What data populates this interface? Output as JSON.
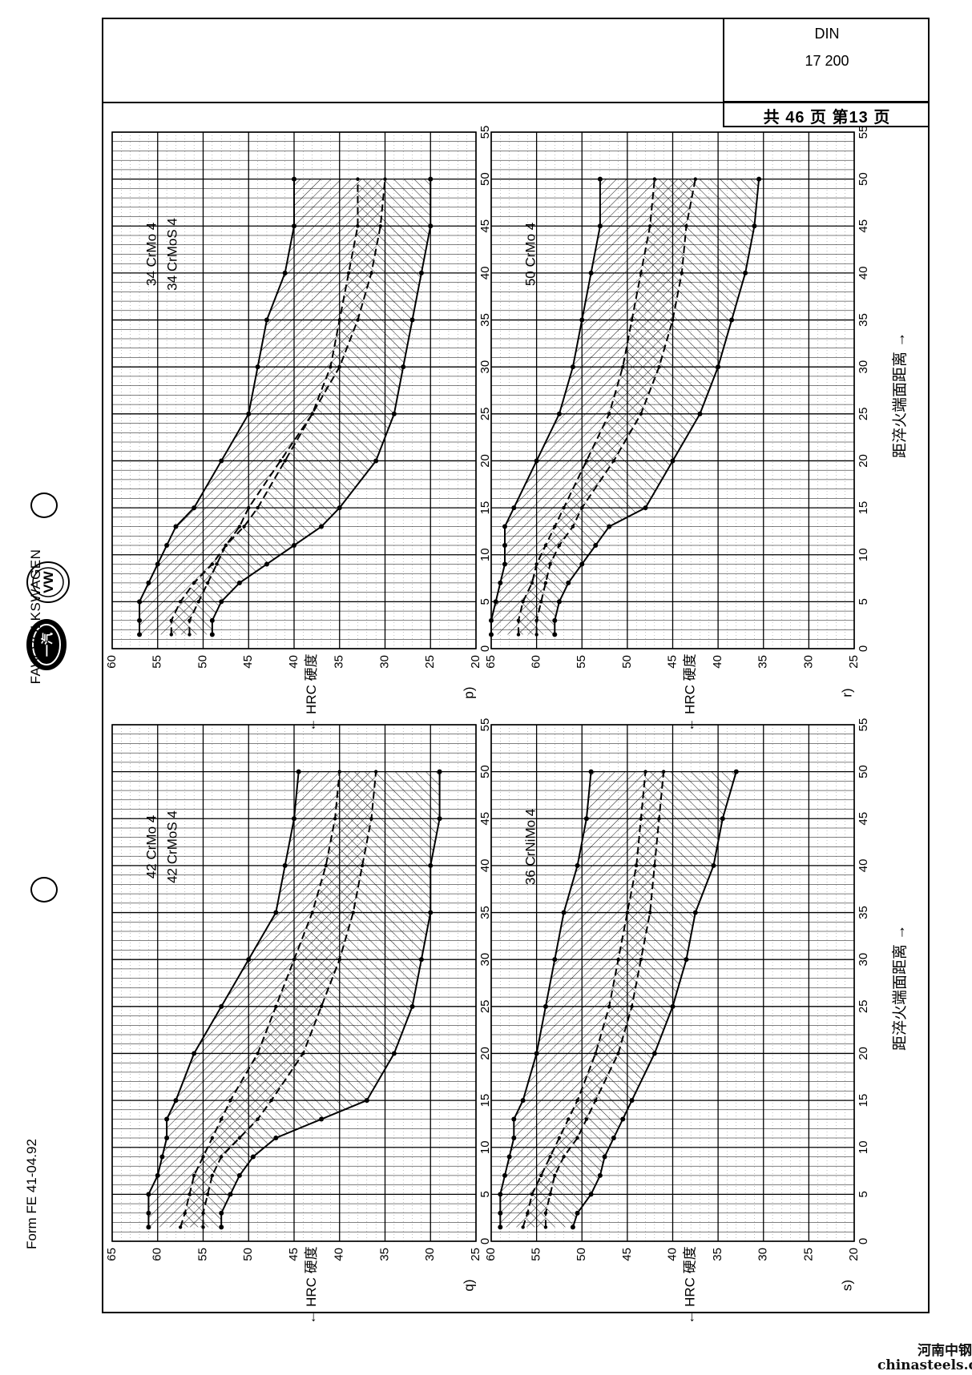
{
  "header": {
    "din_label": "DIN",
    "din_number": "17 200",
    "page_info": "共 46 页 第13 页"
  },
  "brand": {
    "logo_letters": "一汽",
    "vw_letters": "VW",
    "name": "FAW-VOLKSWAGEN"
  },
  "footer": {
    "form_code": "Form FE 41-04.92",
    "watermark_cn": "河南中钢",
    "watermark_url": "chinasteels.c"
  },
  "chart_data": [
    {
      "id": "p)",
      "type": "line",
      "steels": [
        "34 CrMo 4",
        "34 CrMoS 4"
      ],
      "xlabel": "距淬火端面距离 →",
      "ylabel": "← HRC 硬度",
      "xlim": [
        0,
        55
      ],
      "ylim": [
        20,
        60
      ],
      "xticks": [
        0,
        5,
        10,
        15,
        20,
        25,
        30,
        35,
        40,
        45,
        50,
        55
      ],
      "yticks": [
        20,
        25,
        30,
        35,
        40,
        45,
        50,
        55,
        60
      ],
      "series": [
        {
          "x": [
            1.5,
            3,
            5,
            7,
            9,
            11,
            13,
            15,
            20,
            25,
            30,
            35,
            40,
            45,
            50
          ],
          "values": [
            57,
            57,
            57,
            56,
            55,
            54,
            53,
            51,
            48,
            45,
            44,
            43,
            41,
            40,
            40
          ]
        },
        {
          "x": [
            1.5,
            3,
            5,
            7,
            9,
            11,
            13,
            15,
            20,
            25,
            30,
            35,
            40,
            45,
            50
          ],
          "values": [
            53.5,
            53.5,
            52.5,
            51,
            49,
            47.5,
            45.5,
            44,
            41,
            38,
            36,
            35,
            34,
            33,
            33
          ]
        },
        {
          "x": [
            1.5,
            3,
            5,
            7,
            9,
            11,
            13,
            15,
            20,
            25,
            30,
            35,
            40,
            45,
            50
          ],
          "values": [
            51.5,
            51.5,
            50.5,
            49.5,
            48.5,
            47.5,
            46,
            45,
            41.5,
            38,
            35,
            33,
            31.5,
            30.5,
            30
          ]
        },
        {
          "x": [
            1.5,
            3,
            5,
            7,
            9,
            11,
            13,
            15,
            20,
            25,
            30,
            35,
            40,
            45,
            50
          ],
          "values": [
            49,
            49,
            48,
            46,
            43,
            40,
            37,
            35,
            31,
            29,
            28,
            27,
            26,
            25,
            25
          ]
        }
      ]
    },
    {
      "id": "q)",
      "type": "line",
      "steels": [
        "42 CrMo 4",
        "42 CrMoS 4"
      ],
      "xlabel": "距淬火端面距离 →",
      "ylabel": "← HRC 硬度",
      "xlim": [
        0,
        55
      ],
      "ylim": [
        25,
        65
      ],
      "xticks": [
        0,
        5,
        10,
        15,
        20,
        25,
        30,
        35,
        40,
        45,
        50,
        55
      ],
      "yticks": [
        25,
        30,
        35,
        40,
        45,
        50,
        55,
        60,
        65
      ],
      "series": [
        {
          "x": [
            1.5,
            3,
            5,
            7,
            9,
            11,
            13,
            15,
            20,
            25,
            30,
            35,
            40,
            45,
            50
          ],
          "values": [
            61,
            61,
            61,
            60,
            59.5,
            59,
            59,
            58,
            56,
            53,
            50,
            47,
            46,
            45,
            44.5
          ]
        },
        {
          "x": [
            1.5,
            3,
            5,
            7,
            9,
            11,
            13,
            15,
            20,
            25,
            30,
            35,
            40,
            45,
            50
          ],
          "values": [
            57.5,
            57,
            56.5,
            56,
            55,
            54,
            53,
            52,
            49,
            47,
            45,
            43,
            41.5,
            40.5,
            40
          ]
        },
        {
          "x": [
            1.5,
            3,
            5,
            7,
            9,
            11,
            13,
            15,
            20,
            25,
            30,
            35,
            40,
            45,
            50
          ],
          "values": [
            55,
            55,
            54.5,
            54,
            53,
            51,
            49,
            47.5,
            44,
            42,
            40,
            38.5,
            37.5,
            36.5,
            36
          ]
        },
        {
          "x": [
            1.5,
            3,
            5,
            7,
            9,
            11,
            13,
            15,
            20,
            25,
            30,
            35,
            40,
            45,
            50
          ],
          "values": [
            53,
            53,
            52,
            51,
            49.5,
            47,
            42,
            37,
            34,
            32,
            31,
            30,
            30,
            29,
            29
          ]
        }
      ]
    },
    {
      "id": "r)",
      "type": "line",
      "steels": [
        "50 CrMo 4"
      ],
      "xlabel": "距淬火端面距离 →",
      "ylabel": "← HRC 硬度",
      "xlim": [
        0,
        55
      ],
      "ylim": [
        25,
        65
      ],
      "xticks": [
        0,
        5,
        10,
        15,
        20,
        25,
        30,
        35,
        40,
        45,
        50,
        55
      ],
      "yticks": [
        25,
        30,
        35,
        40,
        45,
        50,
        55,
        60,
        65
      ],
      "series": [
        {
          "x": [
            1.5,
            3,
            5,
            7,
            9,
            11,
            13,
            15,
            20,
            25,
            30,
            35,
            40,
            45,
            50
          ],
          "values": [
            65,
            65,
            64.5,
            64,
            63.5,
            63.5,
            63.5,
            62.5,
            60,
            57.5,
            56,
            55,
            54,
            53,
            53
          ]
        },
        {
          "x": [
            1.5,
            3,
            5,
            7,
            9,
            11,
            13,
            15,
            20,
            25,
            30,
            35,
            40,
            45,
            50
          ],
          "values": [
            62,
            62,
            61.5,
            60.5,
            60,
            59,
            58,
            57,
            54.5,
            52,
            50.5,
            49.5,
            48.5,
            47.5,
            47
          ]
        },
        {
          "x": [
            1.5,
            3,
            5,
            7,
            9,
            11,
            13,
            15,
            20,
            25,
            30,
            35,
            40,
            45,
            50
          ],
          "values": [
            60,
            60,
            59.5,
            59,
            58.5,
            57.5,
            56,
            55,
            51.5,
            48.5,
            46.5,
            45,
            44,
            43.5,
            42.5
          ]
        },
        {
          "x": [
            1.5,
            3,
            5,
            7,
            9,
            11,
            13,
            15,
            20,
            25,
            30,
            35,
            40,
            45,
            50
          ],
          "values": [
            58,
            58,
            57.5,
            56.5,
            55,
            53.5,
            52,
            48,
            45,
            42,
            40,
            38.5,
            37,
            36,
            35.5
          ]
        }
      ]
    },
    {
      "id": "s)",
      "type": "line",
      "steels": [
        "36 CrNiMo 4"
      ],
      "xlabel": "距淬火端面距离 →",
      "ylabel": "← HRC 硬度",
      "xlim": [
        0,
        55
      ],
      "ylim": [
        20,
        60
      ],
      "xticks": [
        0,
        5,
        10,
        15,
        20,
        25,
        30,
        35,
        40,
        45,
        50,
        55
      ],
      "yticks": [
        20,
        25,
        30,
        35,
        40,
        45,
        50,
        55,
        60
      ],
      "series": [
        {
          "x": [
            1.5,
            3,
            5,
            7,
            9,
            11,
            13,
            15,
            20,
            25,
            30,
            35,
            40,
            45,
            50
          ],
          "values": [
            59,
            59,
            59,
            58.5,
            58,
            57.5,
            57.5,
            56.5,
            55,
            54,
            53,
            52,
            50.5,
            49.5,
            49
          ]
        },
        {
          "x": [
            1.5,
            3,
            5,
            7,
            9,
            11,
            13,
            15,
            20,
            25,
            30,
            35,
            40,
            45,
            50
          ],
          "values": [
            56.5,
            56,
            55.5,
            54.5,
            53.5,
            52.5,
            51.5,
            50.5,
            48.5,
            47,
            46,
            45,
            44,
            43.5,
            43
          ]
        },
        {
          "x": [
            1.5,
            3,
            5,
            7,
            9,
            11,
            13,
            15,
            20,
            25,
            30,
            35,
            40,
            45,
            50
          ],
          "values": [
            54,
            54,
            53.5,
            53,
            52,
            50.5,
            49.5,
            48.5,
            46,
            44.5,
            43.5,
            42.5,
            42,
            41.5,
            41
          ]
        },
        {
          "x": [
            1.5,
            3,
            5,
            7,
            9,
            11,
            13,
            15,
            20,
            25,
            30,
            35,
            40,
            45,
            50
          ],
          "values": [
            51,
            50.5,
            49,
            48,
            47.5,
            46.5,
            45.5,
            44.5,
            42,
            40,
            38.5,
            37.5,
            35.5,
            34.5,
            33
          ]
        }
      ]
    }
  ]
}
